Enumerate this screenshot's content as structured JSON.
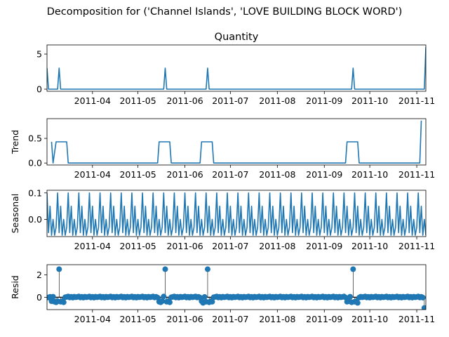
{
  "figure": {
    "suptitle": "Decomposition for ('Channel Islands', 'LOVE BUILDING BLOCK WORD')",
    "line_color": "#1f77b4"
  },
  "chart_data": [
    {
      "type": "line",
      "title": "Quantity",
      "ylabel": "",
      "xlim": [
        "2011-03-02",
        "2011-11-07"
      ],
      "ylim": [
        -0.3,
        6.3
      ],
      "yticks": [
        0,
        5
      ],
      "xticks": [
        "2011-04-01",
        "2011-05-01",
        "2011-06-01",
        "2011-07-01",
        "2011-08-01",
        "2011-09-01",
        "2011-10-01",
        "2011-11-01"
      ],
      "xtick_labels": [
        "2011-04",
        "2011-05",
        "2011-06",
        "2011-07",
        "2011-08",
        "2011-09",
        "2011-10",
        "2011-11"
      ],
      "x": [
        "2011-03-02",
        "2011-03-03",
        "2011-03-09",
        "2011-03-10",
        "2011-03-11",
        "2011-05-18",
        "2011-05-19",
        "2011-05-20",
        "2011-06-15",
        "2011-06-16",
        "2011-06-17",
        "2011-09-19",
        "2011-09-20",
        "2011-09-21",
        "2011-11-06",
        "2011-11-07"
      ],
      "values": [
        3,
        0,
        0,
        3,
        0,
        0,
        3,
        0,
        0,
        3,
        0,
        0,
        3,
        0,
        0,
        6
      ]
    },
    {
      "type": "line",
      "title": "",
      "ylabel": "Trend",
      "xlim": [
        "2011-03-02",
        "2011-11-07"
      ],
      "ylim": [
        -0.04,
        0.9
      ],
      "yticks": [
        0.0,
        0.5
      ],
      "ytick_labels": [
        "0.0",
        "0.5"
      ],
      "xticks": [
        "2011-04-01",
        "2011-05-01",
        "2011-06-01",
        "2011-07-01",
        "2011-08-01",
        "2011-09-01",
        "2011-10-01",
        "2011-11-01"
      ],
      "xtick_labels": [
        "2011-04",
        "2011-05",
        "2011-06",
        "2011-07",
        "2011-08",
        "2011-09",
        "2011-10",
        "2011-11"
      ],
      "x": [
        "2011-03-05",
        "2011-03-06",
        "2011-03-08",
        "2011-03-15",
        "2011-03-16",
        "2011-05-14",
        "2011-05-15",
        "2011-05-22",
        "2011-05-23",
        "2011-06-11",
        "2011-06-12",
        "2011-06-19",
        "2011-06-20",
        "2011-09-15",
        "2011-09-16",
        "2011-09-23",
        "2011-09-24",
        "2011-11-03",
        "2011-11-04"
      ],
      "values": [
        0.43,
        0.0,
        0.43,
        0.43,
        0.0,
        0.0,
        0.43,
        0.43,
        0.0,
        0.0,
        0.43,
        0.43,
        0.0,
        0.0,
        0.43,
        0.43,
        0.0,
        0.0,
        0.86
      ]
    },
    {
      "type": "line",
      "title": "",
      "ylabel": "Seasonal",
      "xlim": [
        "2011-03-02",
        "2011-11-07"
      ],
      "ylim": [
        -0.065,
        0.11
      ],
      "yticks": [
        0.0,
        0.1
      ],
      "ytick_labels": [
        "0.0",
        "0.1"
      ],
      "xticks": [
        "2011-04-01",
        "2011-05-01",
        "2011-06-01",
        "2011-07-01",
        "2011-08-01",
        "2011-09-01",
        "2011-10-01",
        "2011-11-01"
      ],
      "xtick_labels": [
        "2011-04",
        "2011-05",
        "2011-06",
        "2011-07",
        "2011-08",
        "2011-09",
        "2011-10",
        "2011-11"
      ],
      "period_days": 7,
      "pattern_start": "2011-03-02",
      "pattern": [
        0.1,
        -0.05,
        0.05,
        -0.06,
        0.0,
        -0.06,
        -0.03
      ]
    },
    {
      "type": "scatter",
      "title": "",
      "ylabel": "Resid",
      "xlim": [
        "2011-03-02",
        "2011-11-07"
      ],
      "ylim": [
        -1.1,
        2.9
      ],
      "yticks": [
        0,
        2
      ],
      "xticks": [
        "2011-04-01",
        "2011-05-01",
        "2011-06-01",
        "2011-07-01",
        "2011-08-01",
        "2011-09-01",
        "2011-10-01",
        "2011-11-01"
      ],
      "xtick_labels": [
        "2011-04",
        "2011-05",
        "2011-06",
        "2011-07",
        "2011-08",
        "2011-09",
        "2011-10",
        "2011-11"
      ],
      "zero_line": true,
      "baseline": 0.0,
      "points": [
        {
          "x": "2011-03-05",
          "y": -0.35
        },
        {
          "x": "2011-03-06",
          "y": 0.05
        },
        {
          "x": "2011-03-07",
          "y": -0.4
        },
        {
          "x": "2011-03-08",
          "y": -0.45
        },
        {
          "x": "2011-03-09",
          "y": -0.35
        },
        {
          "x": "2011-03-10",
          "y": 2.5
        },
        {
          "x": "2011-03-11",
          "y": -0.4
        },
        {
          "x": "2011-03-12",
          "y": -0.35
        },
        {
          "x": "2011-03-13",
          "y": -0.45
        },
        {
          "x": "2011-05-15",
          "y": -0.4
        },
        {
          "x": "2011-05-16",
          "y": -0.45
        },
        {
          "x": "2011-05-17",
          "y": -0.35
        },
        {
          "x": "2011-05-19",
          "y": 2.5
        },
        {
          "x": "2011-05-20",
          "y": -0.4
        },
        {
          "x": "2011-05-21",
          "y": -0.35
        },
        {
          "x": "2011-05-22",
          "y": -0.45
        },
        {
          "x": "2011-06-12",
          "y": -0.35
        },
        {
          "x": "2011-06-13",
          "y": -0.5
        },
        {
          "x": "2011-06-15",
          "y": -0.4
        },
        {
          "x": "2011-06-16",
          "y": 2.5
        },
        {
          "x": "2011-06-17",
          "y": -0.45
        },
        {
          "x": "2011-06-18",
          "y": -0.35
        },
        {
          "x": "2011-06-19",
          "y": -0.4
        },
        {
          "x": "2011-09-16",
          "y": -0.4
        },
        {
          "x": "2011-09-17",
          "y": -0.35
        },
        {
          "x": "2011-09-19",
          "y": -0.45
        },
        {
          "x": "2011-09-20",
          "y": 2.5
        },
        {
          "x": "2011-09-21",
          "y": -0.4
        },
        {
          "x": "2011-09-22",
          "y": -0.35
        },
        {
          "x": "2011-09-23",
          "y": -0.5
        },
        {
          "x": "2011-11-06",
          "y": -0.95
        }
      ],
      "small_pattern": [
        0.07,
        -0.02,
        0.04,
        -0.03,
        0.05,
        0.0,
        0.03
      ]
    }
  ]
}
